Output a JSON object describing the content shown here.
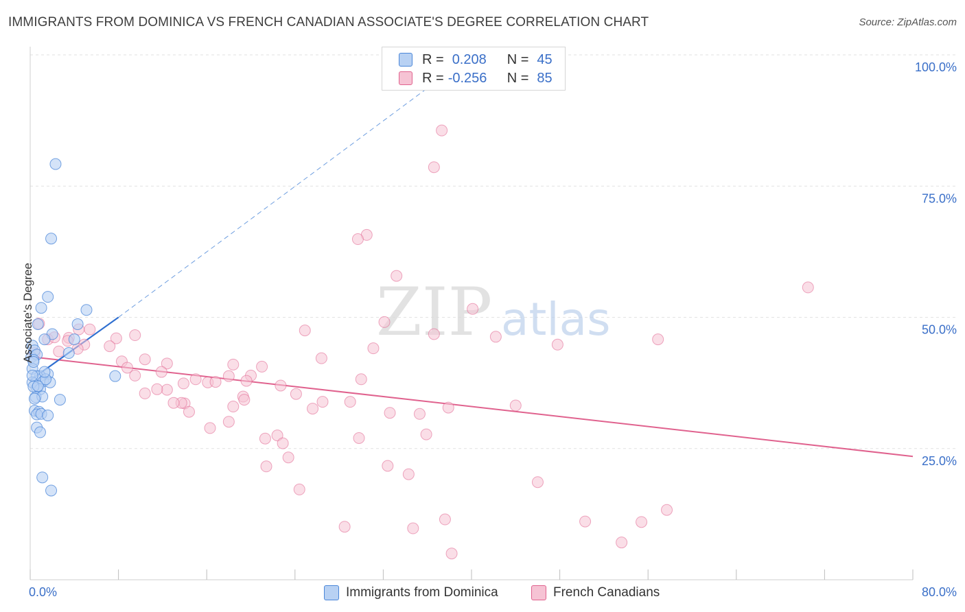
{
  "header": {
    "title": "IMMIGRANTS FROM DOMINICA VS FRENCH CANADIAN ASSOCIATE'S DEGREE CORRELATION CHART",
    "source": "Source: ZipAtlas.com"
  },
  "watermark": "ZIPatlas",
  "legend_top": {
    "rows": [
      {
        "r_label": "R =",
        "r_value": "0.208",
        "n_label": "N =",
        "n_value": "45"
      },
      {
        "r_label": "R =",
        "r_value": "-0.256",
        "n_label": "N =",
        "n_value": "85"
      }
    ]
  },
  "colors": {
    "blue": "#4a86d8",
    "blue_fill": "#b8d1f3",
    "pink": "#e0628e",
    "pink_fill": "#f6c3d4",
    "axis_label": "#3a6fc8",
    "grid": "#e2e2e2"
  },
  "chart_data": {
    "type": "scatter",
    "title": "IMMIGRANTS FROM DOMINICA VS FRENCH CANADIAN ASSOCIATE'S DEGREE CORRELATION CHART",
    "xlabel": "",
    "ylabel": "Associate's Degree",
    "xlim": [
      0,
      80
    ],
    "ylim": [
      0,
      100
    ],
    "x_tick_labels": [
      "0.0%",
      "80.0%"
    ],
    "y_tick_labels": [
      "25.0%",
      "50.0%",
      "75.0%",
      "100.0%"
    ],
    "y_tick_values": [
      25,
      50,
      75,
      100
    ],
    "grid": true,
    "legend": [
      "Immigrants from Dominica",
      "French Canadians"
    ],
    "series": [
      {
        "name": "Immigrants from Dominica",
        "color": "#4a86d8",
        "points": [
          [
            2.3,
            79.2
          ],
          [
            1.9,
            65.0
          ],
          [
            1.6,
            53.9
          ],
          [
            1.0,
            51.8
          ],
          [
            5.1,
            51.4
          ],
          [
            4.3,
            48.7
          ],
          [
            0.7,
            48.7
          ],
          [
            2.0,
            46.8
          ],
          [
            4.0,
            45.8
          ],
          [
            1.3,
            45.8
          ],
          [
            0.2,
            44.6
          ],
          [
            0.1,
            42.4
          ],
          [
            0.4,
            43.7
          ],
          [
            0.6,
            42.9
          ],
          [
            3.5,
            43.2
          ],
          [
            0.3,
            41.9
          ],
          [
            0.2,
            40.2
          ],
          [
            1.6,
            39.2
          ],
          [
            0.9,
            38.8
          ],
          [
            0.6,
            38.8
          ],
          [
            7.7,
            38.8
          ],
          [
            1.2,
            37.8
          ],
          [
            1.8,
            37.6
          ],
          [
            0.2,
            37.6
          ],
          [
            0.6,
            36.5
          ],
          [
            0.9,
            36.3
          ],
          [
            0.3,
            36.8
          ],
          [
            0.5,
            34.8
          ],
          [
            1.1,
            34.9
          ],
          [
            2.7,
            34.3
          ],
          [
            0.4,
            34.5
          ],
          [
            0.4,
            32.2
          ],
          [
            0.8,
            32.0
          ],
          [
            0.6,
            31.5
          ],
          [
            1.0,
            31.6
          ],
          [
            1.6,
            31.3
          ],
          [
            0.6,
            29.0
          ],
          [
            0.9,
            28.1
          ],
          [
            1.1,
            19.5
          ],
          [
            1.9,
            17.0
          ],
          [
            0.2,
            38.9
          ],
          [
            1.4,
            38.2
          ],
          [
            0.3,
            41.5
          ],
          [
            0.7,
            36.9
          ],
          [
            1.3,
            39.6
          ]
        ],
        "trend": {
          "x": [
            0,
            8
          ],
          "y": [
            38.0,
            50.0
          ],
          "dashed_extension_to": [
            37.5,
            96.0
          ]
        }
      },
      {
        "name": "French Canadians",
        "color": "#e0628e",
        "points": [
          [
            37.3,
            85.6
          ],
          [
            36.6,
            78.6
          ],
          [
            30.5,
            65.7
          ],
          [
            29.7,
            64.9
          ],
          [
            33.2,
            57.9
          ],
          [
            70.5,
            55.7
          ],
          [
            40.1,
            51.6
          ],
          [
            32.1,
            49.1
          ],
          [
            0.8,
            48.8
          ],
          [
            24.9,
            47.5
          ],
          [
            36.6,
            46.8
          ],
          [
            42.2,
            46.3
          ],
          [
            56.9,
            45.8
          ],
          [
            4.4,
            47.7
          ],
          [
            5.4,
            47.7
          ],
          [
            9.5,
            46.6
          ],
          [
            7.8,
            46.0
          ],
          [
            3.5,
            46.1
          ],
          [
            1.6,
            45.8
          ],
          [
            2.2,
            46.2
          ],
          [
            3.4,
            45.5
          ],
          [
            4.9,
            44.8
          ],
          [
            7.2,
            44.5
          ],
          [
            4.3,
            44.0
          ],
          [
            2.6,
            43.5
          ],
          [
            0.4,
            43.2
          ],
          [
            47.8,
            44.8
          ],
          [
            31.1,
            44.1
          ],
          [
            26.4,
            42.2
          ],
          [
            8.3,
            41.6
          ],
          [
            10.4,
            42.0
          ],
          [
            12.4,
            41.2
          ],
          [
            18.4,
            41.0
          ],
          [
            8.8,
            40.4
          ],
          [
            11.9,
            39.6
          ],
          [
            18.0,
            38.8
          ],
          [
            20.0,
            38.9
          ],
          [
            9.5,
            38.9
          ],
          [
            15.0,
            38.2
          ],
          [
            16.1,
            37.6
          ],
          [
            16.8,
            37.7
          ],
          [
            19.6,
            37.9
          ],
          [
            22.7,
            37.0
          ],
          [
            12.4,
            36.2
          ],
          [
            10.4,
            35.5
          ],
          [
            24.1,
            35.4
          ],
          [
            19.3,
            34.9
          ],
          [
            14.0,
            33.6
          ],
          [
            13.7,
            33.7
          ],
          [
            19.4,
            34.3
          ],
          [
            26.5,
            33.9
          ],
          [
            29.0,
            33.9
          ],
          [
            13.0,
            33.7
          ],
          [
            18.4,
            33.0
          ],
          [
            37.9,
            32.8
          ],
          [
            44.0,
            33.2
          ],
          [
            25.6,
            32.6
          ],
          [
            14.4,
            32.0
          ],
          [
            32.6,
            31.8
          ],
          [
            35.3,
            31.6
          ],
          [
            18.0,
            30.1
          ],
          [
            16.3,
            28.9
          ],
          [
            21.3,
            26.9
          ],
          [
            29.8,
            27.0
          ],
          [
            22.4,
            27.5
          ],
          [
            35.9,
            27.7
          ],
          [
            22.9,
            26.0
          ],
          [
            23.4,
            23.3
          ],
          [
            21.4,
            21.6
          ],
          [
            32.4,
            21.7
          ],
          [
            34.3,
            20.1
          ],
          [
            46.0,
            18.6
          ],
          [
            24.4,
            17.2
          ],
          [
            34.7,
            9.8
          ],
          [
            28.5,
            10.1
          ],
          [
            37.6,
            11.5
          ],
          [
            50.3,
            11.1
          ],
          [
            55.4,
            11.0
          ],
          [
            57.7,
            13.3
          ],
          [
            38.2,
            5.0
          ],
          [
            53.6,
            7.1
          ],
          [
            30.0,
            38.2
          ],
          [
            21.0,
            40.6
          ],
          [
            11.5,
            36.3
          ],
          [
            13.9,
            37.4
          ]
        ],
        "trend": {
          "x": [
            0,
            80
          ],
          "y": [
            42.5,
            23.5
          ]
        }
      }
    ]
  }
}
